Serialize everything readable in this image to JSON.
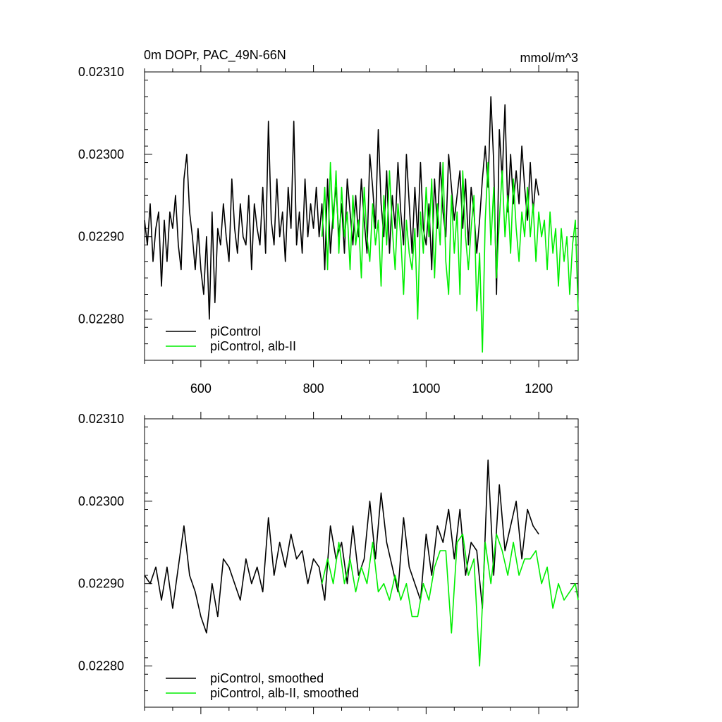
{
  "chart_data": [
    {
      "type": "line",
      "title": "0m DOPr, PAC_49N-66N",
      "units": "mmol/m^3",
      "xlim": [
        500,
        1270
      ],
      "ylim": [
        0.02275,
        0.0231
      ],
      "xticks": [
        600,
        800,
        1000,
        1200
      ],
      "xtick_labels": [
        "600",
        "800",
        "1000",
        "1200"
      ],
      "yticks": [
        0.0228,
        0.0229,
        0.023,
        0.0231
      ],
      "ytick_labels": [
        "0.02280",
        "0.02290",
        "0.02300",
        "0.02310"
      ],
      "legend_position": "bottom-left",
      "series": [
        {
          "name": "piControl",
          "color": "#000000",
          "x": [
            500,
            505,
            510,
            515,
            520,
            525,
            530,
            535,
            540,
            545,
            550,
            555,
            560,
            565,
            570,
            575,
            580,
            585,
            590,
            595,
            600,
            605,
            610,
            615,
            620,
            625,
            630,
            635,
            640,
            645,
            650,
            655,
            660,
            665,
            670,
            675,
            680,
            685,
            690,
            695,
            700,
            705,
            710,
            715,
            720,
            725,
            730,
            735,
            740,
            745,
            750,
            755,
            760,
            765,
            770,
            775,
            780,
            785,
            790,
            795,
            800,
            805,
            810,
            815,
            820,
            825,
            830,
            835,
            840,
            845,
            850,
            855,
            860,
            865,
            870,
            875,
            880,
            885,
            890,
            895,
            900,
            905,
            910,
            915,
            920,
            925,
            930,
            935,
            940,
            945,
            950,
            955,
            960,
            965,
            970,
            975,
            980,
            985,
            990,
            995,
            1000,
            1005,
            1010,
            1015,
            1020,
            1025,
            1030,
            1035,
            1040,
            1045,
            1050,
            1055,
            1060,
            1065,
            1070,
            1075,
            1080,
            1085,
            1090,
            1095,
            1100,
            1105,
            1110,
            1115,
            1120,
            1125,
            1130,
            1135,
            1140,
            1145,
            1150,
            1155,
            1160,
            1165,
            1170,
            1175,
            1180,
            1185,
            1190,
            1195,
            1200
          ],
          "values": [
            0.02292,
            0.02289,
            0.02294,
            0.02287,
            0.02291,
            0.02293,
            0.02284,
            0.02292,
            0.02287,
            0.02293,
            0.02291,
            0.02295,
            0.02289,
            0.02286,
            0.02297,
            0.023,
            0.02293,
            0.0229,
            0.02286,
            0.02291,
            0.02286,
            0.02283,
            0.0229,
            0.0228,
            0.02293,
            0.02282,
            0.02291,
            0.02289,
            0.02294,
            0.0229,
            0.02287,
            0.02297,
            0.02291,
            0.02288,
            0.02294,
            0.0229,
            0.02289,
            0.02295,
            0.02286,
            0.02294,
            0.02291,
            0.02289,
            0.02296,
            0.02288,
            0.02304,
            0.02292,
            0.02289,
            0.02297,
            0.0229,
            0.02293,
            0.02287,
            0.02296,
            0.02291,
            0.02304,
            0.02289,
            0.02293,
            0.02288,
            0.02297,
            0.0229,
            0.02294,
            0.02291,
            0.02296,
            0.0229,
            0.02294,
            0.02286,
            0.02297,
            0.02288,
            0.02293,
            0.02296,
            0.0229,
            0.02294,
            0.02288,
            0.02297,
            0.02293,
            0.02289,
            0.02295,
            0.0229,
            0.02297,
            0.02292,
            0.02288,
            0.023,
            0.02296,
            0.02291,
            0.02303,
            0.02294,
            0.0229,
            0.02298,
            0.02288,
            0.02295,
            0.02291,
            0.02299,
            0.02293,
            0.02289,
            0.023,
            0.02294,
            0.02288,
            0.02296,
            0.0229,
            0.02299,
            0.02291,
            0.02289,
            0.02294,
            0.02286,
            0.02297,
            0.02291,
            0.02299,
            0.02293,
            0.0229,
            0.023,
            0.02296,
            0.02292,
            0.02295,
            0.02298,
            0.02291,
            0.02297,
            0.02289,
            0.02296,
            0.02293,
            0.02288,
            0.02292,
            0.02297,
            0.02301,
            0.02296,
            0.02307,
            0.02299,
            0.02283,
            0.02303,
            0.02297,
            0.02306,
            0.02293,
            0.023,
            0.02294,
            0.02298,
            0.02294,
            0.02301,
            0.02296,
            0.02292,
            0.02299,
            0.02293,
            0.02297,
            0.02295
          ]
        },
        {
          "name": "piControl, alb-II",
          "color": "#00ee00",
          "x": [
            815,
            820,
            825,
            830,
            835,
            840,
            845,
            850,
            855,
            860,
            865,
            870,
            875,
            880,
            885,
            890,
            895,
            900,
            905,
            910,
            915,
            920,
            925,
            930,
            935,
            940,
            945,
            950,
            955,
            960,
            965,
            970,
            975,
            980,
            985,
            990,
            995,
            1000,
            1005,
            1010,
            1015,
            1020,
            1025,
            1030,
            1035,
            1040,
            1045,
            1050,
            1055,
            1060,
            1065,
            1070,
            1075,
            1080,
            1085,
            1090,
            1095,
            1100,
            1105,
            1110,
            1115,
            1120,
            1125,
            1130,
            1135,
            1140,
            1145,
            1150,
            1155,
            1160,
            1165,
            1170,
            1175,
            1180,
            1185,
            1190,
            1195,
            1200,
            1205,
            1210,
            1215,
            1220,
            1225,
            1230,
            1235,
            1240,
            1245,
            1250,
            1255,
            1260,
            1265,
            1270
          ],
          "values": [
            0.0229,
            0.02296,
            0.02286,
            0.02299,
            0.02291,
            0.02298,
            0.02288,
            0.02296,
            0.0229,
            0.02293,
            0.02286,
            0.02295,
            0.02289,
            0.02292,
            0.02285,
            0.02296,
            0.0229,
            0.02287,
            0.02294,
            0.02289,
            0.02292,
            0.02284,
            0.02295,
            0.02289,
            0.02298,
            0.02291,
            0.02286,
            0.02294,
            0.0229,
            0.02283,
            0.02292,
            0.02288,
            0.02286,
            0.02291,
            0.0228,
            0.02293,
            0.02288,
            0.02296,
            0.0229,
            0.02297,
            0.02285,
            0.02294,
            0.02289,
            0.02299,
            0.02287,
            0.02283,
            0.02295,
            0.02288,
            0.02293,
            0.02283,
            0.02298,
            0.0229,
            0.02286,
            0.02291,
            0.02295,
            0.02281,
            0.02288,
            0.02276,
            0.02292,
            0.02299,
            0.02289,
            0.02296,
            0.02285,
            0.02292,
            0.02298,
            0.0229,
            0.02295,
            0.02288,
            0.02297,
            0.02291,
            0.02287,
            0.02293,
            0.0229,
            0.02296,
            0.0229,
            0.02294,
            0.02287,
            0.02293,
            0.0229,
            0.02292,
            0.02286,
            0.02293,
            0.02288,
            0.02291,
            0.02284,
            0.02291,
            0.02287,
            0.0229,
            0.02283,
            0.02289,
            0.02292,
            0.02281
          ]
        }
      ]
    },
    {
      "type": "line",
      "title": "",
      "xlim": [
        500,
        1270
      ],
      "ylim": [
        0.02275,
        0.0231
      ],
      "xticks": [
        600,
        800,
        1000,
        1200
      ],
      "yticks": [
        0.0228,
        0.0229,
        0.023,
        0.0231
      ],
      "ytick_labels": [
        "0.02280",
        "0.02290",
        "0.02300",
        "0.02310"
      ],
      "legend_position": "bottom-left",
      "series": [
        {
          "name": "piControl, smoothed",
          "color": "#000000",
          "x": [
            500,
            510,
            520,
            530,
            540,
            550,
            560,
            570,
            580,
            590,
            600,
            610,
            620,
            630,
            640,
            650,
            660,
            670,
            680,
            690,
            700,
            710,
            720,
            730,
            740,
            750,
            760,
            770,
            780,
            790,
            800,
            810,
            820,
            830,
            840,
            850,
            860,
            870,
            880,
            890,
            900,
            910,
            920,
            930,
            940,
            950,
            960,
            970,
            980,
            990,
            1000,
            1010,
            1020,
            1030,
            1040,
            1050,
            1060,
            1070,
            1080,
            1090,
            1100,
            1110,
            1120,
            1130,
            1140,
            1150,
            1160,
            1170,
            1180,
            1190,
            1200
          ],
          "values": [
            0.02291,
            0.0229,
            0.02292,
            0.02288,
            0.02292,
            0.02287,
            0.02292,
            0.02297,
            0.02291,
            0.02289,
            0.02286,
            0.02284,
            0.0229,
            0.02286,
            0.02293,
            0.02292,
            0.0229,
            0.02288,
            0.02293,
            0.0229,
            0.02292,
            0.02289,
            0.02298,
            0.02291,
            0.02295,
            0.02292,
            0.02296,
            0.02293,
            0.02294,
            0.0229,
            0.02293,
            0.02292,
            0.02288,
            0.02297,
            0.02293,
            0.02295,
            0.0229,
            0.02297,
            0.02291,
            0.02293,
            0.023,
            0.02293,
            0.02301,
            0.02295,
            0.02292,
            0.02289,
            0.02298,
            0.02292,
            0.0229,
            0.02288,
            0.02296,
            0.02291,
            0.02297,
            0.02295,
            0.02299,
            0.02293,
            0.02299,
            0.02291,
            0.02295,
            0.02294,
            0.02287,
            0.02305,
            0.02291,
            0.02302,
            0.02294,
            0.02297,
            0.023,
            0.02293,
            0.02299,
            0.02297,
            0.02296
          ]
        },
        {
          "name": "piControl, alb-II, smoothed",
          "color": "#00ee00",
          "x": [
            815,
            825,
            835,
            845,
            855,
            865,
            875,
            885,
            895,
            905,
            915,
            925,
            935,
            945,
            955,
            965,
            975,
            985,
            995,
            1005,
            1015,
            1025,
            1035,
            1045,
            1055,
            1065,
            1075,
            1085,
            1095,
            1105,
            1115,
            1125,
            1135,
            1145,
            1155,
            1165,
            1175,
            1185,
            1195,
            1205,
            1215,
            1225,
            1235,
            1245,
            1255,
            1265,
            1270
          ],
          "values": [
            0.0229,
            0.02293,
            0.0229,
            0.02295,
            0.0229,
            0.02293,
            0.02289,
            0.02292,
            0.0229,
            0.02295,
            0.02289,
            0.0229,
            0.02288,
            0.02291,
            0.02288,
            0.0229,
            0.02286,
            0.02286,
            0.0229,
            0.02288,
            0.02292,
            0.02294,
            0.02294,
            0.02284,
            0.02295,
            0.02296,
            0.02291,
            0.02293,
            0.0228,
            0.02295,
            0.0229,
            0.02296,
            0.02294,
            0.02291,
            0.02295,
            0.02291,
            0.02293,
            0.02293,
            0.02294,
            0.0229,
            0.02292,
            0.02287,
            0.0229,
            0.02288,
            0.02289,
            0.0229,
            0.02288
          ]
        }
      ]
    }
  ]
}
